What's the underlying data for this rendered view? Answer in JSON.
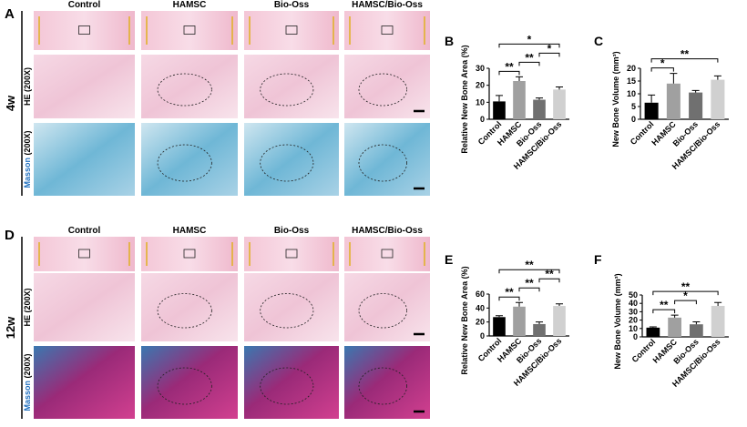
{
  "chart_data": [
    {
      "type": "bar",
      "panel_label": "B",
      "y_label": "Relative New Bone Area (%)",
      "categories": [
        "Control",
        "HAMSC",
        "Bio-Oss",
        "HAMSC/Bio-Oss"
      ],
      "values": [
        10.5,
        22.5,
        11.5,
        17.5
      ],
      "errors": [
        3.5,
        2.5,
        1,
        1.5
      ],
      "colors": [
        "#000000",
        "#a0a0a0",
        "#707070",
        "#d0d0d0"
      ],
      "ylim": [
        0,
        30
      ],
      "yticks": [
        0,
        10,
        20,
        30
      ],
      "significance": [
        {
          "between": [
            0,
            1
          ],
          "label": "**"
        },
        {
          "between": [
            1,
            2
          ],
          "label": "**"
        },
        {
          "between": [
            2,
            3
          ],
          "label": "*"
        },
        {
          "between": [
            0,
            3
          ],
          "label": "*"
        }
      ]
    },
    {
      "type": "bar",
      "panel_label": "C",
      "y_label": "New Bone Volume (mm³)",
      "categories": [
        "Control",
        "HAMSC",
        "Bio-Oss",
        "HAMSC/Bio-Oss"
      ],
      "values": [
        6.5,
        14,
        10.5,
        15.5
      ],
      "errors": [
        3,
        4,
        0.8,
        1.5
      ],
      "colors": [
        "#000000",
        "#a0a0a0",
        "#707070",
        "#d0d0d0"
      ],
      "ylim": [
        0,
        20
      ],
      "yticks": [
        0,
        5,
        10,
        15,
        20
      ],
      "significance": [
        {
          "between": [
            0,
            1
          ],
          "label": "*"
        },
        {
          "between": [
            0,
            3
          ],
          "label": "**"
        }
      ]
    },
    {
      "type": "bar",
      "panel_label": "E",
      "y_label": "Relative New Bone Area (%)",
      "categories": [
        "Control",
        "HAMSC",
        "Bio-Oss",
        "HAMSC/Bio-Oss"
      ],
      "values": [
        27,
        42,
        17,
        43
      ],
      "errors": [
        2,
        6,
        3,
        3
      ],
      "colors": [
        "#000000",
        "#a0a0a0",
        "#707070",
        "#d0d0d0"
      ],
      "ylim": [
        0,
        60
      ],
      "yticks": [
        0,
        20,
        40,
        60
      ],
      "significance": [
        {
          "between": [
            0,
            1
          ],
          "label": "**"
        },
        {
          "between": [
            1,
            2
          ],
          "label": "**"
        },
        {
          "between": [
            2,
            3
          ],
          "label": "**"
        },
        {
          "between": [
            0,
            3
          ],
          "label": "**"
        }
      ]
    },
    {
      "type": "bar",
      "panel_label": "F",
      "y_label": "New Bone Volume (mm³)",
      "categories": [
        "Control",
        "HAMSC",
        "Bio-Oss",
        "HAMSC/Bio-Oss"
      ],
      "values": [
        11,
        23,
        15,
        37
      ],
      "errors": [
        1,
        3,
        3,
        4
      ],
      "colors": [
        "#000000",
        "#a0a0a0",
        "#707070",
        "#d0d0d0"
      ],
      "ylim": [
        0,
        50
      ],
      "yticks": [
        0,
        10,
        20,
        30,
        40,
        50
      ],
      "significance": [
        {
          "between": [
            0,
            1
          ],
          "label": "**"
        },
        {
          "between": [
            1,
            2
          ],
          "label": "*"
        },
        {
          "between": [
            0,
            3
          ],
          "label": "**"
        }
      ]
    }
  ],
  "figure": {
    "panels": [
      {
        "label": "A",
        "time": "4w",
        "columns": [
          "Control",
          "HAMSC",
          "Bio-Oss",
          "HAMSC/Bio-Oss"
        ],
        "rows": [
          {
            "stain": "HE",
            "magnification": " (200X)"
          },
          {
            "stain": "Masson",
            "magnification": " (200X)"
          }
        ]
      },
      {
        "label": "D",
        "time": "12w",
        "columns": [
          "Control",
          "HAMSC",
          "Bio-Oss",
          "HAMSC/Bio-Oss"
        ],
        "rows": [
          {
            "stain": "HE",
            "magnification": " (200X)"
          },
          {
            "stain": "Masson",
            "magnification": " (200X)"
          }
        ]
      }
    ]
  }
}
